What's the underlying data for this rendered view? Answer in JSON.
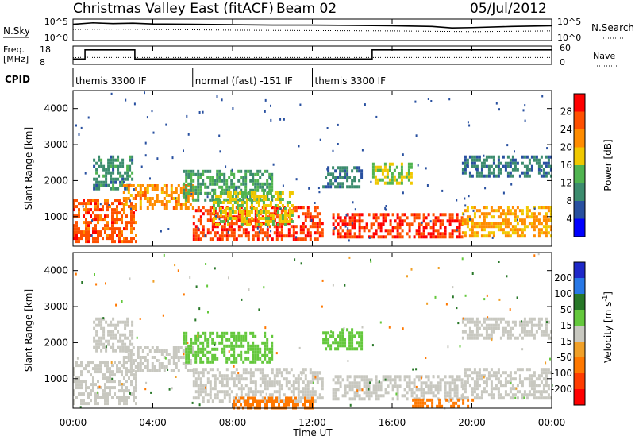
{
  "header": {
    "station": "Christmas Valley East (fitACF)",
    "beam": "Beam 02",
    "date": "05/Jul/2012"
  },
  "strip_panels": {
    "nsky": {
      "left_label": "N.Sky",
      "ticks_left": [
        "10^5",
        "10^0"
      ],
      "ticks_right": [
        "10^5",
        "10^0"
      ],
      "right_label": "N.Search"
    },
    "freq": {
      "left_label_1": "Freq.",
      "left_label_2": "[MHz]",
      "ticks_left": [
        "18",
        "8"
      ],
      "ticks_right": [
        "60",
        "0"
      ],
      "right_label": "Nave"
    },
    "cpid": {
      "left_label": "CPID",
      "segments": [
        {
          "label": "themis 3300 IF",
          "start_h": 0.0,
          "end_h": 6.0
        },
        {
          "label": "normal (fast) -151 IF",
          "start_h": 6.0,
          "end_h": 12.0
        },
        {
          "label": "themis 3300 IF",
          "start_h": 12.0,
          "end_h": 24.0
        }
      ]
    }
  },
  "axes": {
    "x_ticks": [
      "00:00",
      "04:00",
      "08:00",
      "12:00",
      "16:00",
      "20:00",
      "00:00"
    ],
    "x_label": "Time UT",
    "y_ticks": [
      "1000",
      "2000",
      "3000",
      "4000"
    ],
    "y_label": "Slant Range [km]"
  },
  "power_scale": {
    "label": "Power [dB]",
    "tick_labels": [
      "4",
      "8",
      "12",
      "16",
      "20",
      "24",
      "28"
    ],
    "colors": [
      "#0000ff",
      "#2850a0",
      "#3c8c6e",
      "#50b450",
      "#f0c800",
      "#ff8c00",
      "#ff5000",
      "#ff0000"
    ]
  },
  "velocity_scale": {
    "label": "Velocity [m s",
    "label_sup": "-1",
    "label_end": "]",
    "tick_labels": [
      "200",
      "100",
      "50",
      "15",
      "-15",
      "-50",
      "-100",
      "-200"
    ],
    "colors": [
      "#1e28c8",
      "#2878e6",
      "#287828",
      "#64c83c",
      "#c8c8c0",
      "#f0a028",
      "#ff7800",
      "#ff3c00",
      "#ff0000"
    ]
  },
  "chart_data": [
    {
      "type": "line",
      "title": "N.Sky / N.Search",
      "x_range_h": [
        0,
        24
      ],
      "ylim_log10": [
        0,
        5
      ],
      "series": [
        {
          "name": "N.Sky",
          "x": [
            0,
            1,
            2,
            3,
            4,
            6,
            8,
            10,
            12,
            14,
            16,
            18,
            19,
            20,
            22,
            24
          ],
          "y_log10": [
            4.0,
            4.4,
            4.2,
            4.3,
            4.1,
            4.0,
            3.9,
            3.8,
            3.8,
            3.7,
            3.6,
            3.4,
            3.0,
            3.1,
            3.4,
            3.6
          ]
        },
        {
          "name": "N.Search",
          "x": [
            0,
            2,
            4,
            8,
            12,
            16,
            20,
            24
          ],
          "y_log10": [
            2.6,
            2.7,
            2.6,
            2.4,
            2.3,
            2.2,
            2.0,
            2.2
          ]
        }
      ]
    },
    {
      "type": "line",
      "title": "Freq. / Nave",
      "x_range_h": [
        0,
        24
      ],
      "series": [
        {
          "name": "Freq.",
          "x": [
            0,
            0.6,
            0.6,
            3.1,
            3.1,
            15.0,
            15.0,
            24
          ],
          "y": [
            10.5,
            10.5,
            16.5,
            16.5,
            10.5,
            10.5,
            16.5,
            16.5
          ],
          "ylim": [
            8,
            18
          ]
        },
        {
          "name": "Nave",
          "x": [
            0,
            0.6,
            1.0,
            24
          ],
          "y": [
            20,
            22,
            21,
            21
          ],
          "ylim": [
            0,
            60
          ]
        }
      ]
    },
    {
      "type": "heatmap",
      "title": "Power [dB]",
      "x_range_h": [
        0,
        24
      ],
      "ylim_km": [
        180,
        4500
      ],
      "value_range_db": [
        0,
        32
      ],
      "bands": [
        {
          "t0": 0.0,
          "t1": 3.2,
          "r0": 300,
          "r1": 1500,
          "v": 26
        },
        {
          "t0": 1.0,
          "t1": 3.0,
          "r0": 1800,
          "r1": 2700,
          "v": 10
        },
        {
          "t0": 2.5,
          "t1": 6.0,
          "r0": 1200,
          "r1": 1900,
          "v": 22
        },
        {
          "t0": 5.5,
          "t1": 10.0,
          "r0": 1500,
          "r1": 2300,
          "v": 12
        },
        {
          "t0": 6.0,
          "t1": 12.5,
          "r0": 400,
          "r1": 1300,
          "v": 27
        },
        {
          "t0": 7.0,
          "t1": 11.0,
          "r0": 800,
          "r1": 1700,
          "v": 17
        },
        {
          "t0": 12.5,
          "t1": 14.5,
          "r0": 1800,
          "r1": 2400,
          "v": 9
        },
        {
          "t0": 13.0,
          "t1": 19.5,
          "r0": 400,
          "r1": 1100,
          "v": 28
        },
        {
          "t0": 15.0,
          "t1": 17.0,
          "r0": 1900,
          "r1": 2500,
          "v": 16
        },
        {
          "t0": 19.5,
          "t1": 24.0,
          "r0": 500,
          "r1": 1300,
          "v": 21
        },
        {
          "t0": 19.5,
          "t1": 24.0,
          "r0": 2100,
          "r1": 2700,
          "v": 9
        }
      ]
    },
    {
      "type": "heatmap",
      "title": "Velocity [m s-1]",
      "x_range_h": [
        0,
        24
      ],
      "ylim_km": [
        180,
        4500
      ],
      "value_range_ms": [
        -200,
        200
      ],
      "bands": [
        {
          "t0": 0.0,
          "t1": 3.2,
          "r0": 300,
          "r1": 1500,
          "v": 0
        },
        {
          "t0": 1.0,
          "t1": 3.0,
          "r0": 1800,
          "r1": 2700,
          "v": 0
        },
        {
          "t0": 2.5,
          "t1": 6.0,
          "r0": 1200,
          "r1": 1900,
          "v": 0
        },
        {
          "t0": 5.5,
          "t1": 10.0,
          "r0": 1500,
          "r1": 2300,
          "v": 30
        },
        {
          "t0": 6.0,
          "t1": 12.5,
          "r0": 400,
          "r1": 1300,
          "v": 0
        },
        {
          "t0": 8.0,
          "t1": 12.0,
          "r0": 200,
          "r1": 500,
          "v": -60
        },
        {
          "t0": 12.5,
          "t1": 14.5,
          "r0": 1800,
          "r1": 2400,
          "v": 25
        },
        {
          "t0": 13.0,
          "t1": 19.5,
          "r0": 400,
          "r1": 1100,
          "v": 0
        },
        {
          "t0": 17.0,
          "t1": 20.0,
          "r0": 250,
          "r1": 450,
          "v": -60
        },
        {
          "t0": 19.5,
          "t1": 24.0,
          "r0": 500,
          "r1": 1300,
          "v": 0
        },
        {
          "t0": 19.5,
          "t1": 24.0,
          "r0": 2100,
          "r1": 2700,
          "v": 0
        }
      ]
    }
  ]
}
